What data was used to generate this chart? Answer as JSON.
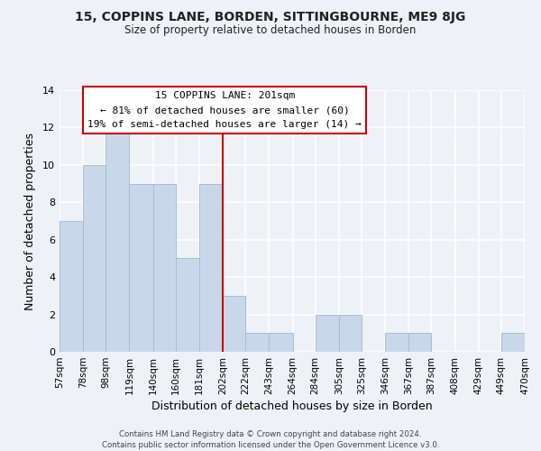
{
  "title_line1": "15, COPPINS LANE, BORDEN, SITTINGBOURNE, ME9 8JG",
  "title_line2": "Size of property relative to detached houses in Borden",
  "xlabel": "Distribution of detached houses by size in Borden",
  "ylabel": "Number of detached properties",
  "bins": [
    57,
    78,
    98,
    119,
    140,
    160,
    181,
    202,
    222,
    243,
    264,
    284,
    305,
    325,
    346,
    367,
    387,
    408,
    429,
    449,
    470
  ],
  "counts": [
    7,
    10,
    12,
    9,
    9,
    5,
    9,
    3,
    1,
    1,
    0,
    2,
    2,
    0,
    1,
    1,
    0,
    0,
    0,
    1
  ],
  "bar_color": "#c8d8ea",
  "bar_edgecolor": "#a8bece",
  "reference_line_x": 202,
  "reference_line_color": "#cc0000",
  "ylim": [
    0,
    14
  ],
  "yticks": [
    0,
    2,
    4,
    6,
    8,
    10,
    12,
    14
  ],
  "annotation_title": "15 COPPINS LANE: 201sqm",
  "annotation_line1": "← 81% of detached houses are smaller (60)",
  "annotation_line2": "19% of semi-detached houses are larger (14) →",
  "annotation_box_facecolor": "#ffffff",
  "annotation_box_edgecolor": "#cc0000",
  "footer_line1": "Contains HM Land Registry data © Crown copyright and database right 2024.",
  "footer_line2": "Contains public sector information licensed under the Open Government Licence v3.0.",
  "background_color": "#eef2f6",
  "grid_color": "#ffffff"
}
